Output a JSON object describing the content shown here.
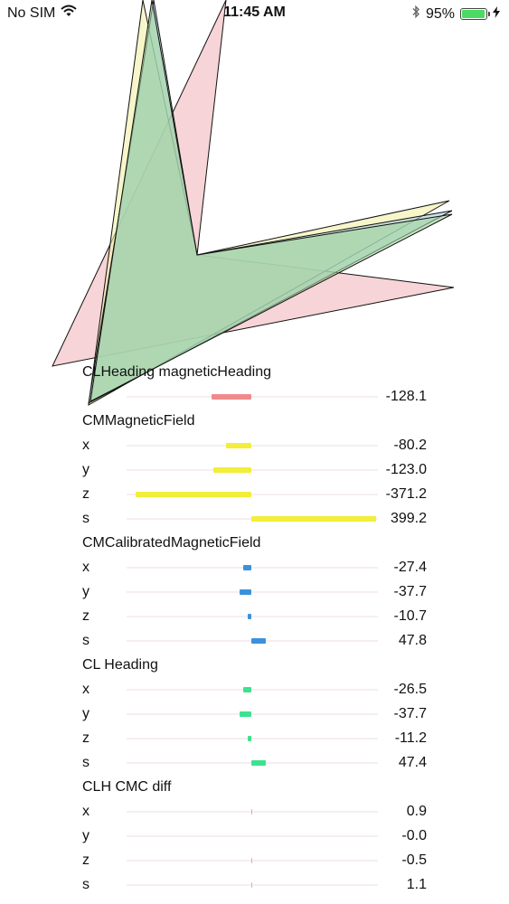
{
  "status_bar": {
    "carrier": "No SIM",
    "time": "11:45 AM",
    "battery_percent": "95%",
    "battery_level": 0.95,
    "icons": [
      "wifi-icon",
      "bluetooth-icon",
      "battery-icon",
      "charging-bolt-icon"
    ]
  },
  "heading_visualization": {
    "colors": {
      "magnetic_heading": "#f2b8bd",
      "magnetic_field": "#f2f0a8",
      "calibrated_field": "#a9cfe0",
      "heading_xyz": "#9fd39a"
    }
  },
  "sections": [
    {
      "title": "CLHeading magneticHeading",
      "color": "#f08a8a",
      "rows": [
        {
          "axis": "",
          "display": "-128.1",
          "value": -128.1
        }
      ]
    },
    {
      "title": "CMMagneticField",
      "color": "#f2ee3a",
      "rows": [
        {
          "axis": "x",
          "display": "-80.2",
          "value": -80.2
        },
        {
          "axis": "y",
          "display": "-123.0",
          "value": -123.0
        },
        {
          "axis": "z",
          "display": "-371.2",
          "value": -371.2
        },
        {
          "axis": "s",
          "display": "399.2",
          "value": 399.2
        }
      ]
    },
    {
      "title": "CMCalibratedMagneticField",
      "color": "#3a92dc",
      "rows": [
        {
          "axis": "x",
          "display": "-27.4",
          "value": -27.4
        },
        {
          "axis": "y",
          "display": "-37.7",
          "value": -37.7
        },
        {
          "axis": "z",
          "display": "-10.7",
          "value": -10.7
        },
        {
          "axis": "s",
          "display": "47.8",
          "value": 47.8
        }
      ]
    },
    {
      "title": "CL Heading",
      "color": "#3de28f",
      "rows": [
        {
          "axis": "x",
          "display": "-26.5",
          "value": -26.5
        },
        {
          "axis": "y",
          "display": "-37.7",
          "value": -37.7
        },
        {
          "axis": "z",
          "display": "-11.2",
          "value": -11.2
        },
        {
          "axis": "s",
          "display": "47.4",
          "value": 47.4
        }
      ]
    },
    {
      "title": "CLH  CMC diff",
      "color": "#ef9ae8",
      "rows": [
        {
          "axis": "x",
          "display": "0.9",
          "value": 0.9
        },
        {
          "axis": "y",
          "display": "-0.0",
          "value": -0.0
        },
        {
          "axis": "z",
          "display": "-0.5",
          "value": -0.5
        },
        {
          "axis": "s",
          "display": "1.1",
          "value": 1.1
        }
      ]
    }
  ]
}
